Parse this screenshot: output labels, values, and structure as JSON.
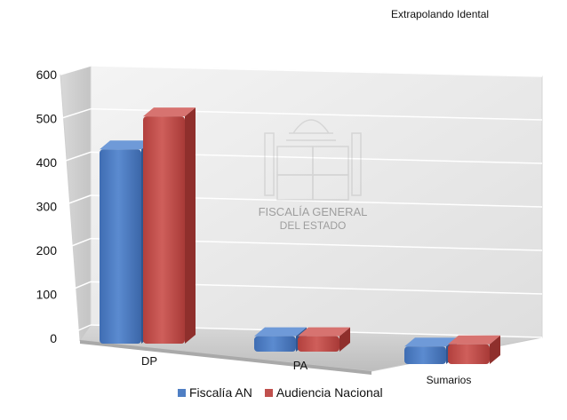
{
  "chart_data": {
    "type": "bar",
    "title": "Extrapolando Idental",
    "categories": [
      "DP",
      "PA",
      "Sumarios"
    ],
    "series": [
      {
        "name": "Fiscalía AN",
        "values": [
          470,
          35,
          40
        ],
        "color": "#4f7fc4"
      },
      {
        "name": "Audiencia Nacional",
        "values": [
          550,
          35,
          45
        ],
        "color": "#c0504d"
      }
    ],
    "yticks": [
      "0",
      "100",
      "200",
      "300",
      "400",
      "500",
      "600"
    ],
    "ylim": [
      0,
      600
    ],
    "xlabel": "",
    "ylabel": "",
    "grid": true,
    "legend_position": "bottom",
    "style": "3d-column",
    "watermark": {
      "line1": "FISCALÍA GENERAL",
      "line2": "DEL ESTADO"
    }
  }
}
